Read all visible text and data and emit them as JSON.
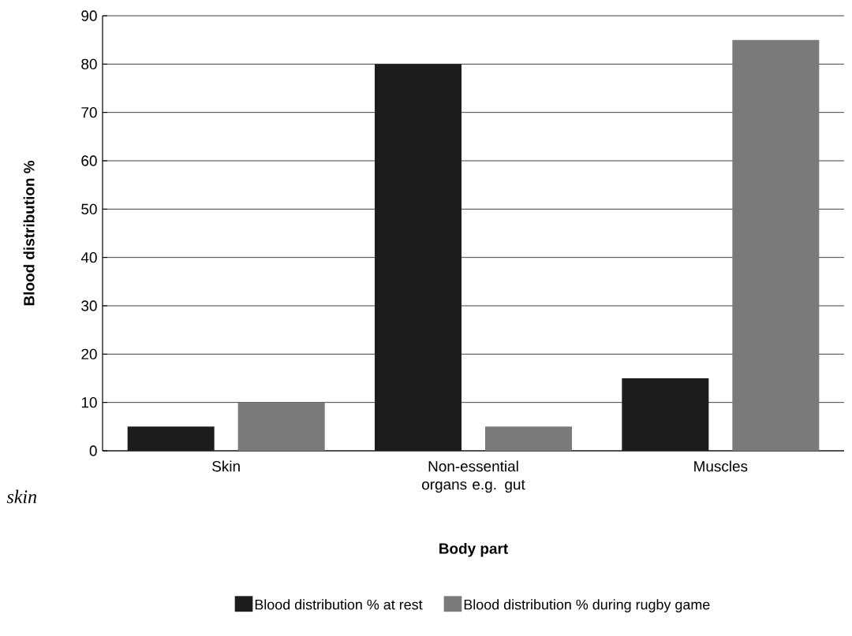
{
  "chart_data": {
    "type": "bar",
    "categories": [
      "Skin",
      "Non-essential organs e.g. gut",
      "Muscles"
    ],
    "series": [
      {
        "name": "Blood distribution % at rest",
        "color": "#1c1c1c",
        "values": [
          5,
          80,
          15
        ]
      },
      {
        "name": "Blood distribution % during rugby game",
        "color": "#7a7a7a",
        "values": [
          10,
          5,
          85
        ]
      }
    ],
    "xlabel": "Body part",
    "ylabel": "Blood distribution %",
    "ylim": [
      0,
      90
    ],
    "yticks": [
      0,
      10,
      20,
      30,
      40,
      50,
      60,
      70,
      80,
      90
    ],
    "grid": "y",
    "legend": "bottom",
    "annotations": [
      "skin"
    ]
  }
}
